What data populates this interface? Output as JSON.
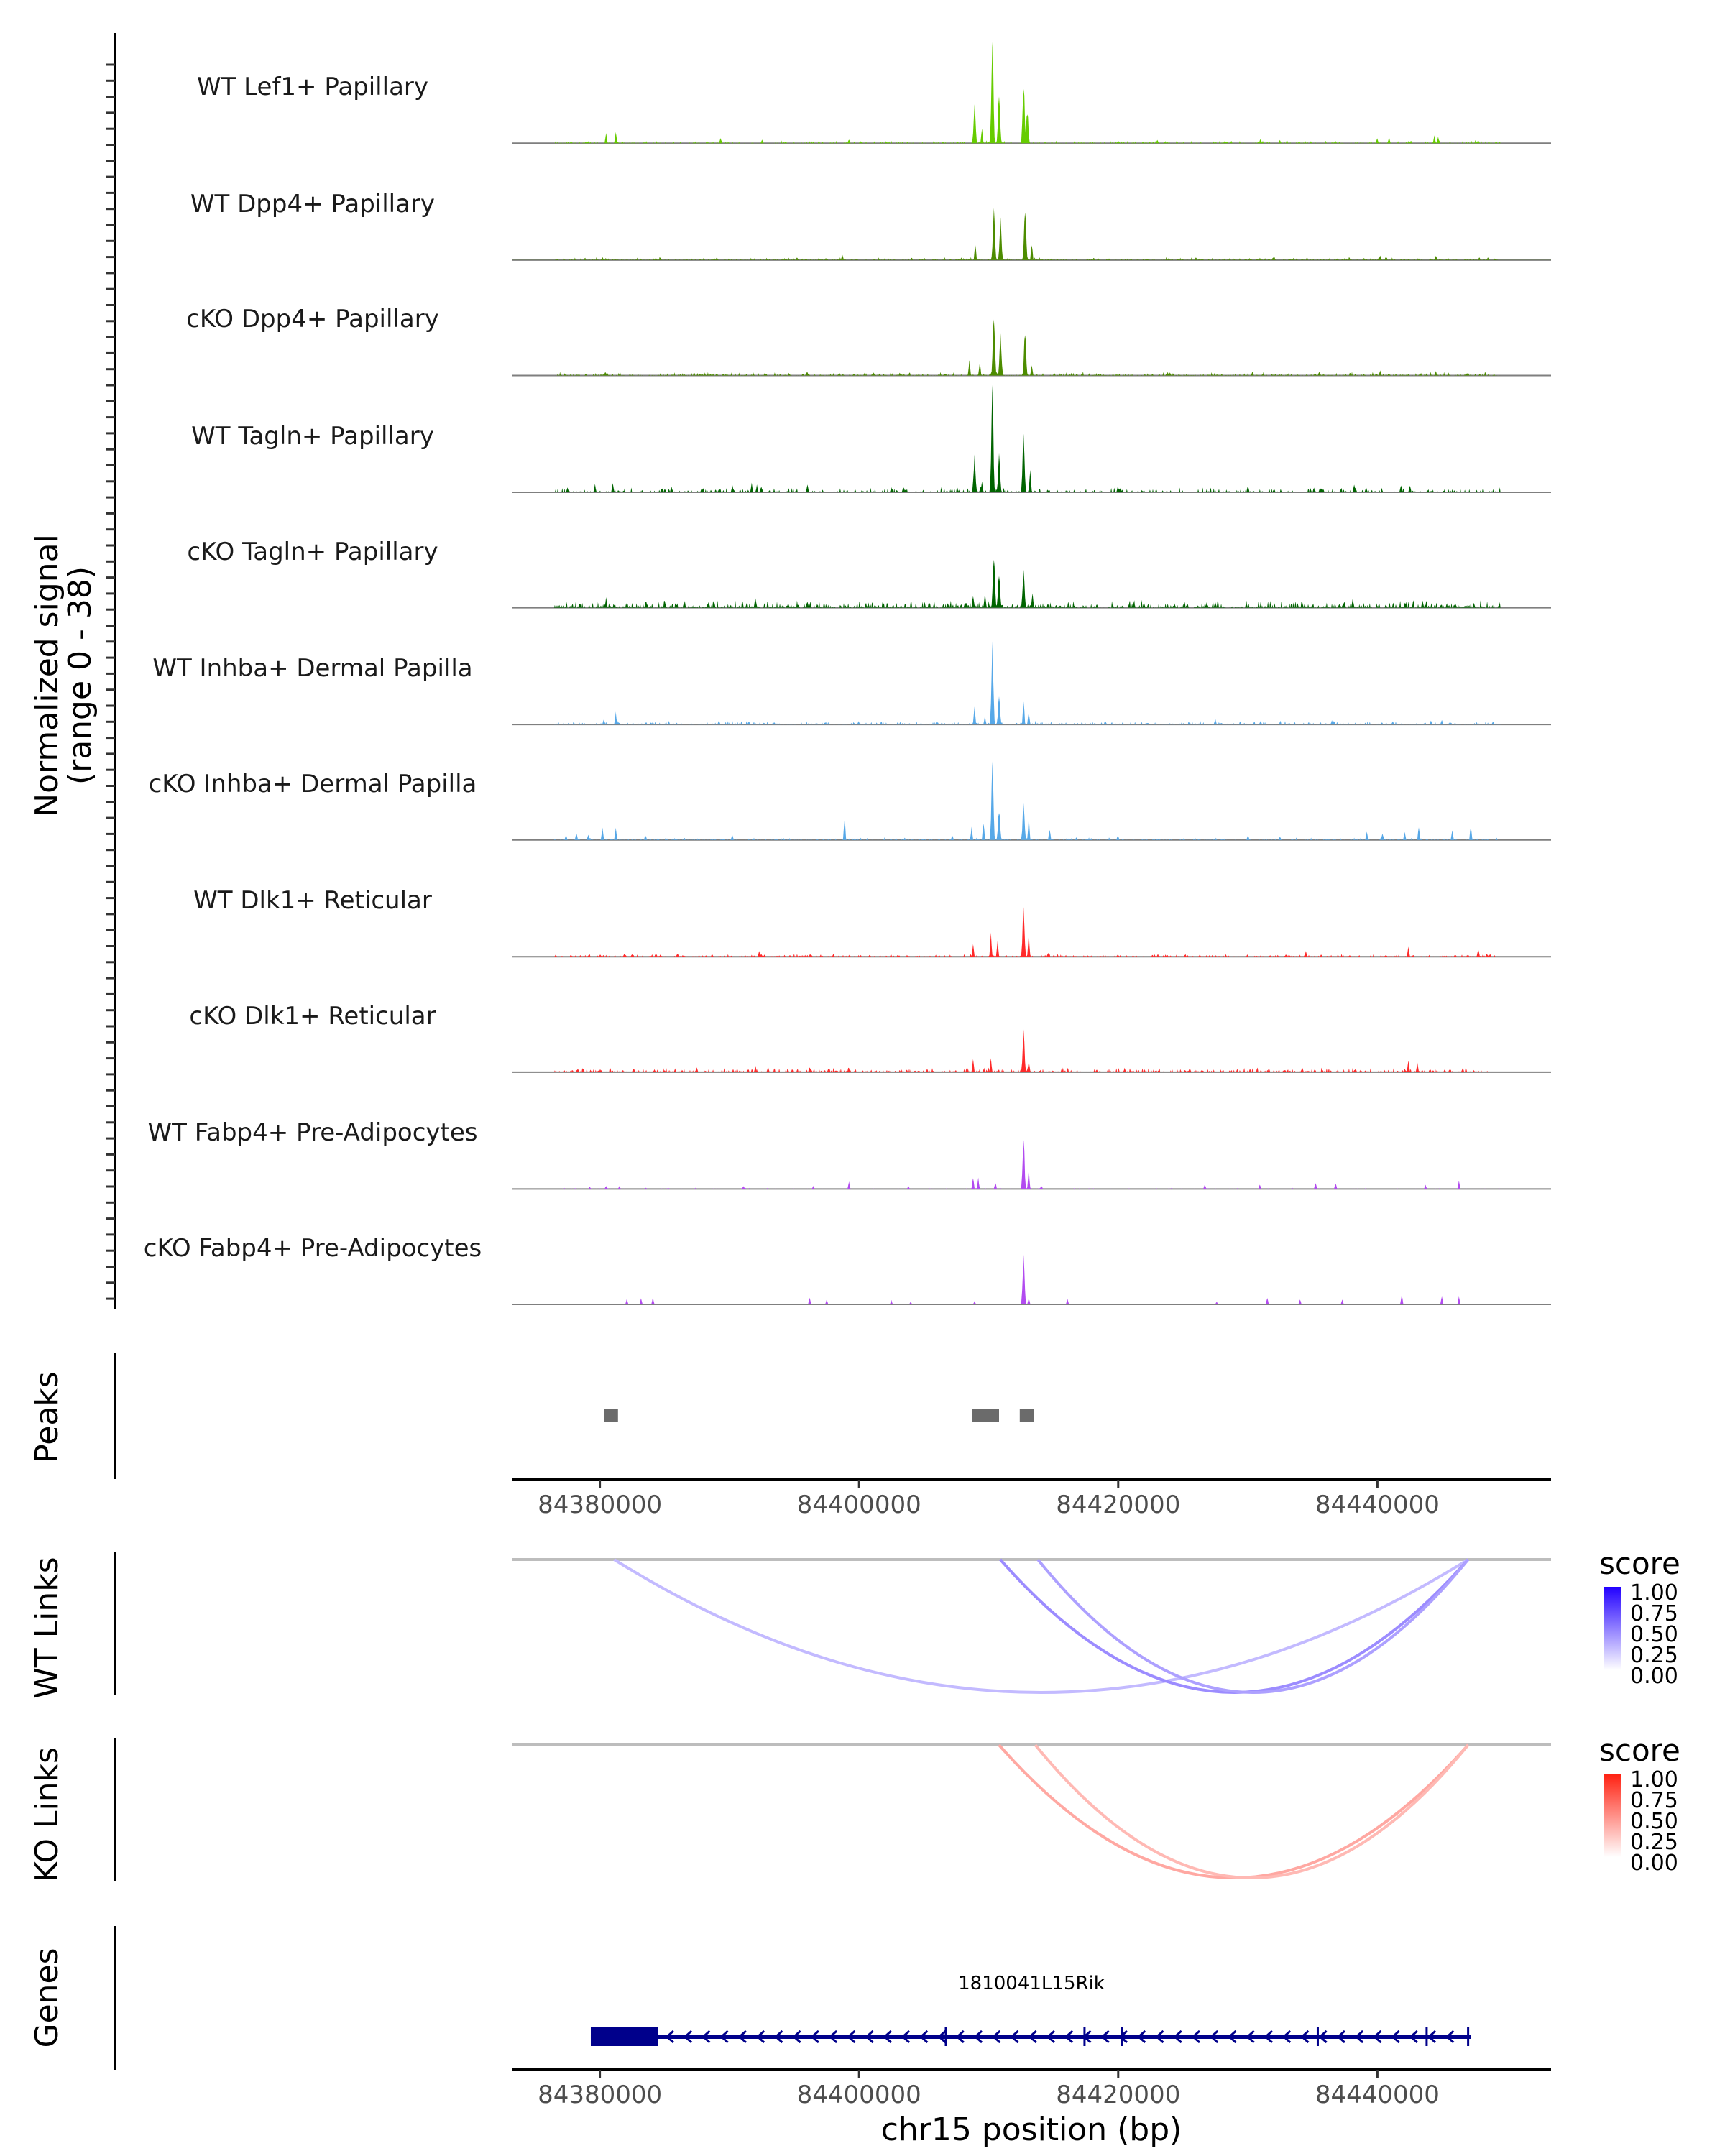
{
  "chart_data": {
    "type": "area",
    "title": "",
    "chromosome": "chr15",
    "xlabel": "chr15 position (bp)",
    "ylabel": "Normalized signal\n(range 0 - 38)",
    "ylabel_lines": [
      "Normalized signal",
      "(range 0 - 38)"
    ],
    "ylim": [
      0,
      38
    ],
    "xlim": [
      84373200,
      84453400
    ],
    "x_ticks": [
      84380000,
      84400000,
      84420000,
      84440000
    ],
    "x_tick_labels": [
      "84380000",
      "84400000",
      "84420000",
      "84440000"
    ],
    "coverage_tracks": [
      {
        "name": "WT Lef1+ Papillary",
        "color": "#66cc00",
        "noise": 0.35,
        "density": 0.45,
        "peaks": [
          [
            84380500,
            3.5
          ],
          [
            84381200,
            4.2
          ],
          [
            84389300,
            2.0
          ],
          [
            84392500,
            1.2
          ],
          [
            84399200,
            1.5
          ],
          [
            84408900,
            14.0
          ],
          [
            84409500,
            5.0
          ],
          [
            84410300,
            38.0
          ],
          [
            84410800,
            18.0
          ],
          [
            84412700,
            23.0
          ],
          [
            84413000,
            12.0
          ],
          [
            84423000,
            1.3
          ],
          [
            84431000,
            1.8
          ],
          [
            84432500,
            1.2
          ],
          [
            84440000,
            2.0
          ],
          [
            84440900,
            2.2
          ],
          [
            84444400,
            2.7
          ],
          [
            84444700,
            2.3
          ]
        ]
      },
      {
        "name": "WT Dpp4+ Papillary",
        "color": "#4d8c00",
        "noise": 0.35,
        "density": 0.45,
        "peaks": [
          [
            84380200,
            1.2
          ],
          [
            84389000,
            1.0
          ],
          [
            84398700,
            2.0
          ],
          [
            84409000,
            6.0
          ],
          [
            84410400,
            19.0
          ],
          [
            84410900,
            14.0
          ],
          [
            84412800,
            19.5
          ],
          [
            84413300,
            6.0
          ],
          [
            84426000,
            1.0
          ],
          [
            84432000,
            1.5
          ],
          [
            84440200,
            1.8
          ],
          [
            84444500,
            1.8
          ],
          [
            84448500,
            1.0
          ]
        ]
      },
      {
        "name": "cKO Dpp4+ Papillary",
        "color": "#4d8c00",
        "noise": 0.45,
        "density": 0.5,
        "peaks": [
          [
            84380400,
            1.5
          ],
          [
            84398500,
            1.0
          ],
          [
            84408500,
            5.5
          ],
          [
            84409300,
            5.0
          ],
          [
            84410400,
            22.0
          ],
          [
            84410900,
            14.0
          ],
          [
            84412800,
            16.5
          ],
          [
            84413300,
            4.0
          ],
          [
            84424000,
            1.0
          ],
          [
            84435500,
            1.5
          ],
          [
            84440200,
            1.8
          ],
          [
            84444500,
            1.5
          ],
          [
            84447000,
            1.0
          ]
        ]
      },
      {
        "name": "WT Tagln+ Papillary",
        "color": "#006400",
        "noise": 0.6,
        "density": 0.5,
        "peaks": [
          [
            84377500,
            1.8
          ],
          [
            84379600,
            2.8
          ],
          [
            84381000,
            3.6
          ],
          [
            84385500,
            2.2
          ],
          [
            84387900,
            1.8
          ],
          [
            84390200,
            2.8
          ],
          [
            84391700,
            3.2
          ],
          [
            84392100,
            2.6
          ],
          [
            84396000,
            2.8
          ],
          [
            84402500,
            1.8
          ],
          [
            84408900,
            13.0
          ],
          [
            84409500,
            3.6
          ],
          [
            84410300,
            36.0
          ],
          [
            84410800,
            13.0
          ],
          [
            84412700,
            22.0
          ],
          [
            84413200,
            8.0
          ],
          [
            84420000,
            2.2
          ],
          [
            84430000,
            2.8
          ],
          [
            84435600,
            1.8
          ],
          [
            84438200,
            3.3
          ],
          [
            84439100,
            2.0
          ],
          [
            84441800,
            2.8
          ],
          [
            84442500,
            2.6
          ]
        ]
      },
      {
        "name": "cKO Tagln+ Papillary",
        "color": "#006400",
        "noise": 0.9,
        "density": 0.65,
        "peaks": [
          [
            84380500,
            3.5
          ],
          [
            84385000,
            2.4
          ],
          [
            84392000,
            4.0
          ],
          [
            84396000,
            2.5
          ],
          [
            84408800,
            5.0
          ],
          [
            84409700,
            6.0
          ],
          [
            84410400,
            19.0
          ],
          [
            84410800,
            13.0
          ],
          [
            84412700,
            13.5
          ],
          [
            84413400,
            5.0
          ],
          [
            84422000,
            2.0
          ],
          [
            84427500,
            2.4
          ],
          [
            84434200,
            2.0
          ],
          [
            84438100,
            3.6
          ],
          [
            84443500,
            2.6
          ],
          [
            84446000,
            1.8
          ]
        ]
      },
      {
        "name": "WT Inhba+ Dermal Papilla",
        "color": "#56a8e8",
        "noise": 0.45,
        "density": 0.5,
        "peaks": [
          [
            84380300,
            2.2
          ],
          [
            84381200,
            4.3
          ],
          [
            84389200,
            1.5
          ],
          [
            84400000,
            1.2
          ],
          [
            84406000,
            1.3
          ],
          [
            84408900,
            7.0
          ],
          [
            84409700,
            3.0
          ],
          [
            84410300,
            28.0
          ],
          [
            84410800,
            11.0
          ],
          [
            84412700,
            9.0
          ],
          [
            84413100,
            5.0
          ],
          [
            84419000,
            1.5
          ],
          [
            84427500,
            2.0
          ],
          [
            84431000,
            1.4
          ],
          [
            84436500,
            1.5
          ],
          [
            84441200,
            1.2
          ],
          [
            84445000,
            1.8
          ]
        ]
      },
      {
        "name": "cKO Inhba+ Dermal Papilla",
        "color": "#56a8e8",
        "noise": 0.3,
        "density": 0.35,
        "peaks": [
          [
            84377400,
            1.8
          ],
          [
            84378200,
            2.5
          ],
          [
            84379100,
            1.8
          ],
          [
            84380200,
            4.7
          ],
          [
            84381200,
            4.7
          ],
          [
            84383500,
            1.8
          ],
          [
            84390200,
            1.8
          ],
          [
            84398900,
            8.1
          ],
          [
            84403500,
            0.8
          ],
          [
            84407200,
            1.8
          ],
          [
            84408700,
            4.5
          ],
          [
            84409600,
            7.0
          ],
          [
            84410300,
            28.0
          ],
          [
            84410800,
            11.0
          ],
          [
            84412700,
            13.0
          ],
          [
            84413100,
            8.0
          ],
          [
            84414700,
            4.0
          ],
          [
            84420000,
            1.8
          ],
          [
            84430000,
            1.8
          ],
          [
            84432500,
            1.2
          ],
          [
            84439200,
            3.0
          ],
          [
            84440400,
            2.5
          ],
          [
            84442100,
            3.0
          ],
          [
            84443200,
            5.0
          ],
          [
            84445800,
            3.8
          ],
          [
            84447200,
            5.2
          ]
        ]
      },
      {
        "name": "WT Dlk1+ Reticular",
        "color": "#ff2a2a",
        "noise": 0.35,
        "density": 0.55,
        "peaks": [
          [
            84380000,
            0.8
          ],
          [
            84382500,
            1.0
          ],
          [
            84386000,
            1.2
          ],
          [
            84392300,
            2.0
          ],
          [
            84398000,
            1.0
          ],
          [
            84408800,
            4.5
          ],
          [
            84410200,
            8.5
          ],
          [
            84410700,
            6.0
          ],
          [
            84412700,
            18.0
          ],
          [
            84413100,
            8.0
          ],
          [
            84414600,
            1.5
          ],
          [
            84434500,
            2.0
          ],
          [
            84442400,
            3.5
          ],
          [
            84447800,
            3.2
          ],
          [
            84448700,
            1.0
          ]
        ]
      },
      {
        "name": "cKO Dlk1+ Reticular",
        "color": "#ff2a2a",
        "noise": 0.55,
        "density": 0.7,
        "peaks": [
          [
            84380000,
            1.0
          ],
          [
            84387500,
            1.8
          ],
          [
            84392000,
            2.3
          ],
          [
            84393000,
            2.0
          ],
          [
            84396200,
            2.0
          ],
          [
            84408800,
            4.5
          ],
          [
            84410200,
            5.0
          ],
          [
            84412700,
            14.5
          ],
          [
            84413100,
            4.5
          ],
          [
            84420500,
            1.5
          ],
          [
            84434200,
            1.7
          ],
          [
            84442400,
            4.2
          ],
          [
            84443100,
            3.2
          ],
          [
            84446600,
            1.5
          ]
        ]
      },
      {
        "name": "WT Fabp4+ Pre-Adipocytes",
        "color": "#b24bf0",
        "noise": 0.15,
        "density": 0.25,
        "peaks": [
          [
            84379200,
            0.8
          ],
          [
            84380500,
            1.2
          ],
          [
            84381500,
            1.0
          ],
          [
            84391100,
            1.2
          ],
          [
            84396500,
            1.2
          ],
          [
            84399200,
            2.5
          ],
          [
            84403800,
            1.0
          ],
          [
            84408800,
            4.5
          ],
          [
            84409200,
            4.0
          ],
          [
            84410500,
            2.5
          ],
          [
            84412700,
            18.0
          ],
          [
            84413100,
            7.0
          ],
          [
            84414100,
            1.2
          ],
          [
            84426700,
            1.8
          ],
          [
            84430900,
            1.8
          ],
          [
            84435200,
            2.5
          ],
          [
            84436800,
            2.3
          ],
          [
            84443700,
            1.5
          ],
          [
            84446300,
            2.8
          ]
        ]
      },
      {
        "name": "cKO Fabp4+ Pre-Adipocytes",
        "color": "#b24bf0",
        "noise": 0.1,
        "density": 0.2,
        "peaks": [
          [
            84382100,
            2.0
          ],
          [
            84383200,
            2.2
          ],
          [
            84384100,
            2.5
          ],
          [
            84396200,
            2.5
          ],
          [
            84397500,
            1.8
          ],
          [
            84402500,
            1.5
          ],
          [
            84404000,
            1.0
          ],
          [
            84408900,
            1.2
          ],
          [
            84412700,
            18.0
          ],
          [
            84413100,
            2.5
          ],
          [
            84416100,
            2.0
          ],
          [
            84427600,
            1.0
          ],
          [
            84431500,
            2.5
          ],
          [
            84434000,
            2.0
          ],
          [
            84437300,
            1.8
          ],
          [
            84441900,
            3.8
          ],
          [
            84445000,
            3.2
          ],
          [
            84446300,
            3.0
          ]
        ]
      }
    ],
    "peaks_track": {
      "label": "Peaks",
      "color": "#6b6b6b",
      "regions": [
        [
          84380300,
          84381400
        ],
        [
          84408700,
          84410800
        ],
        [
          84412400,
          84413500
        ]
      ]
    },
    "link_tracks": [
      {
        "label": "WT Links",
        "colorscale": [
          "#ffffff",
          "#2200ff"
        ],
        "links": [
          {
            "start": 84381100,
            "end": 84447000,
            "score": 0.25
          },
          {
            "start": 84410900,
            "end": 84447000,
            "score": 0.55
          },
          {
            "start": 84413800,
            "end": 84447000,
            "score": 0.42
          }
        ],
        "legend": {
          "title": "score",
          "ticks": [
            "1.00",
            "0.75",
            "0.50",
            "0.25",
            "0.00"
          ]
        }
      },
      {
        "label": "KO Links",
        "colorscale": [
          "#ffffff",
          "#ff2010"
        ],
        "links": [
          {
            "start": 84410800,
            "end": 84447000,
            "score": 0.45
          },
          {
            "start": 84413600,
            "end": 84447000,
            "score": 0.32
          }
        ],
        "legend": {
          "title": "score",
          "ticks": [
            "1.00",
            "0.75",
            "0.50",
            "0.25",
            "0.00"
          ]
        }
      }
    ],
    "gene_track": {
      "label": "Genes",
      "color": "#00008b",
      "gene": {
        "name": "1810041L15Rik",
        "strand": "-",
        "start": 84379300,
        "end": 84447200,
        "thick_exon": [
          84379300,
          84384500
        ],
        "exon_marks": [
          84406700,
          84417400,
          84420300,
          84435400,
          84443800,
          84447000
        ]
      }
    }
  }
}
